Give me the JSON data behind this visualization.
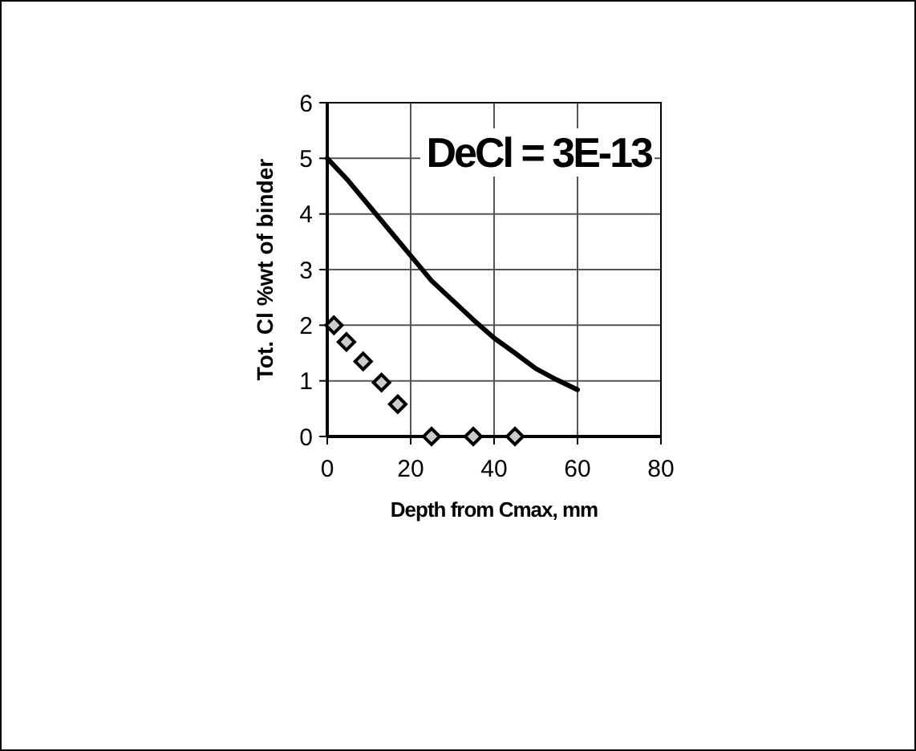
{
  "chart_data": {
    "type": "line",
    "xlabel": "Depth from Cmax, mm",
    "ylabel": "Tot. Cl %wt of binder",
    "annotations": [
      "DeCl = 3E-13"
    ],
    "xlim": [
      0,
      80
    ],
    "xticks": [
      0,
      20,
      40,
      60,
      80
    ],
    "ylim": [
      0,
      6
    ],
    "yticks": [
      0,
      1,
      2,
      3,
      4,
      5,
      6
    ],
    "grid": true,
    "series": [
      {
        "color": "#000000",
        "marker": "none",
        "line_style": "solid",
        "x": [
          0,
          5,
          10,
          15,
          20,
          25,
          30,
          35,
          40,
          45,
          50,
          55,
          60
        ],
        "values": [
          5,
          4.6,
          4.15,
          3.7,
          3.25,
          2.8,
          2.45,
          2.1,
          1.77,
          1.5,
          1.22,
          1.02,
          0.84
        ]
      },
      {
        "type": "scatter",
        "color": "#000000",
        "marker": "diamond",
        "x": [
          1.6,
          4.6,
          8.6,
          13,
          16.9,
          25,
          35,
          45
        ],
        "values": [
          2,
          1.7,
          1.35,
          0.97,
          0.58,
          0,
          0,
          0
        ]
      }
    ]
  }
}
